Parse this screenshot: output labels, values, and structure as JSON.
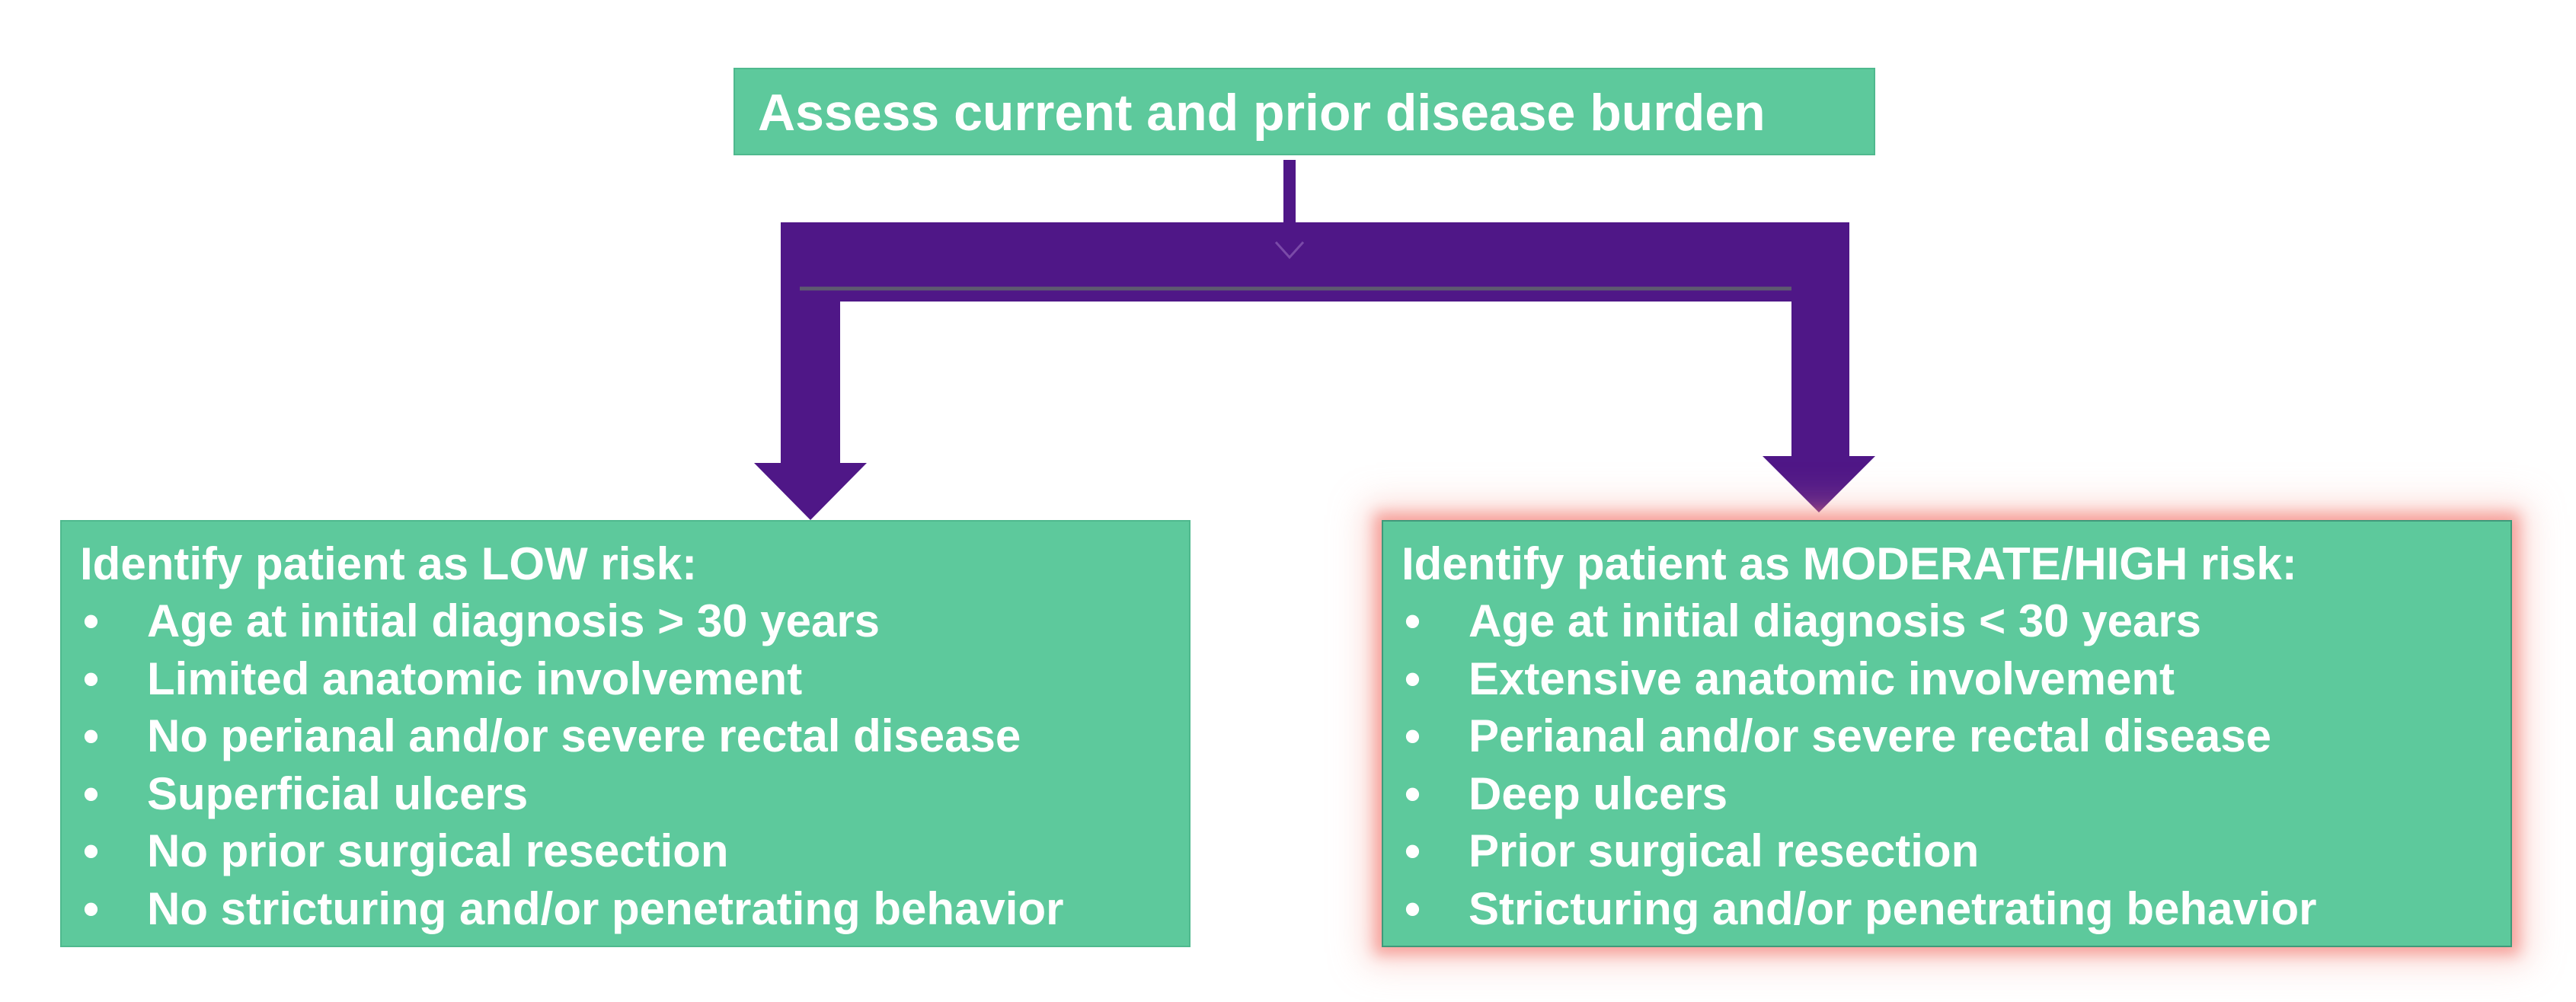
{
  "diagram": {
    "top_box": {
      "text": "Assess current and prior disease burden"
    },
    "low_risk": {
      "heading": "Identify patient as LOW risk:",
      "items": [
        "Age at initial diagnosis > 30 years",
        "Limited anatomic involvement",
        "No perianal and/or severe rectal disease",
        "Superficial ulcers",
        "No prior surgical resection",
        "No stricturing and/or penetrating behavior"
      ]
    },
    "high_risk": {
      "heading": "Identify patient as MODERATE/HIGH risk:",
      "items": [
        "Age at initial diagnosis < 30 years",
        "Extensive anatomic involvement",
        "Perianal and/or severe rectal disease",
        "Deep ulcers",
        "Prior surgical resection",
        "Stricturing and/or penetrating behavior"
      ]
    },
    "bullet_symbol": "•",
    "colors": {
      "box_fill": "#5dc99c",
      "arrow": "#4f1787",
      "text": "#ffffff",
      "highlight_glow": "#f06e64"
    }
  }
}
